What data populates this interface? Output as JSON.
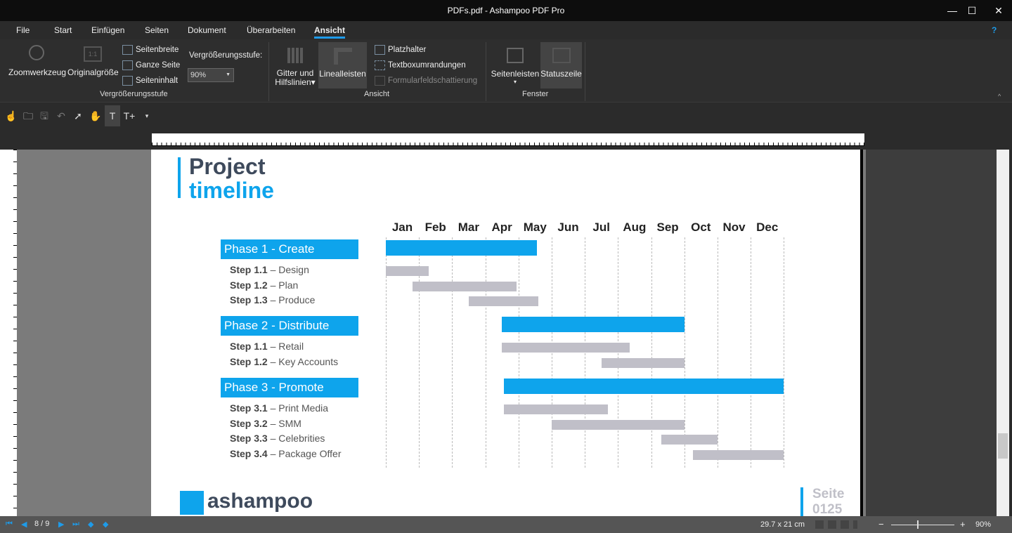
{
  "window": {
    "title": "PDFs.pdf - Ashampoo PDF Pro",
    "minimize": "—",
    "maximize": "☐",
    "close": "✕"
  },
  "menu": {
    "items": [
      "File",
      "Start",
      "Einfügen",
      "Seiten",
      "Dokument",
      "Überarbeiten",
      "Ansicht"
    ],
    "active": "Ansicht",
    "help": "?"
  },
  "ribbon": {
    "zoomtool": "Zoomwerkzeug",
    "original": "Originalgröße",
    "seitenbreite": "Seitenbreite",
    "ganze": "Ganze Seite",
    "inhalt": "Seiteninhalt",
    "zoom_label": "Vergrößerungsstufe:",
    "zoom_value": "90%",
    "group1": "Vergrößerungsstufe",
    "gitter1": "Gitter und",
    "gitter2": "Hilfslinien",
    "lineal": "Linealleisten",
    "platz": "Platzhalter",
    "textbox": "Textboxumrandungen",
    "formular": "Formularfeldschattierung",
    "group2": "Ansicht",
    "seitenleisten": "Seitenleisten",
    "statuszeile": "Statuszeile",
    "group3": "Fenster"
  },
  "document": {
    "title_line1": "Project",
    "title_line2": "timeline",
    "phases": [
      {
        "label": "Phase 1 - Create",
        "steps": [
          {
            "id": "Step 1.1",
            "name": "– Design"
          },
          {
            "id": "Step 1.2",
            "name": "– Plan"
          },
          {
            "id": "Step 1.3",
            "name": "– Produce"
          }
        ]
      },
      {
        "label": "Phase 2 - Distribute",
        "steps": [
          {
            "id": "Step 1.1",
            "name": "– Retail"
          },
          {
            "id": "Step 1.2",
            "name": "– Key Accounts"
          }
        ]
      },
      {
        "label": "Phase 3 - Promote",
        "steps": [
          {
            "id": "Step 3.1",
            "name": "– Print Media"
          },
          {
            "id": "Step 3.2",
            "name": "– SMM"
          },
          {
            "id": "Step 3.3",
            "name": "– Celebrities"
          },
          {
            "id": "Step 3.4",
            "name": "– Package Offer"
          }
        ]
      }
    ],
    "logo_text": "ashampoo",
    "page_label": "Seite",
    "page_number": "0125"
  },
  "chart_data": {
    "type": "gantt",
    "categories": [
      "Jan",
      "Feb",
      "Mar",
      "Apr",
      "May",
      "Jun",
      "Jul",
      "Aug",
      "Sep",
      "Oct",
      "Nov",
      "Dec"
    ],
    "unit": "months from start of Jan",
    "colors": {
      "phase": "#0ea4ec",
      "step": "#c0bfc8"
    },
    "tasks": [
      {
        "kind": "phase",
        "start": 0,
        "end": 4.55
      },
      {
        "kind": "step",
        "start": 0,
        "end": 1.3
      },
      {
        "kind": "step",
        "start": 0.8,
        "end": 3.95
      },
      {
        "kind": "step",
        "start": 2.5,
        "end": 4.6
      },
      {
        "kind": "phase",
        "start": 3.5,
        "end": 9
      },
      {
        "kind": "step",
        "start": 3.5,
        "end": 7.35
      },
      {
        "kind": "step",
        "start": 6.5,
        "end": 9
      },
      {
        "kind": "phase",
        "start": 3.55,
        "end": 12
      },
      {
        "kind": "step",
        "start": 3.55,
        "end": 6.7
      },
      {
        "kind": "step",
        "start": 5,
        "end": 9
      },
      {
        "kind": "step",
        "start": 8.3,
        "end": 10
      },
      {
        "kind": "step",
        "start": 9.25,
        "end": 12
      }
    ]
  },
  "status": {
    "page": "8 / 9",
    "size": "29.7 x 21 cm",
    "zoom": "90%",
    "zoom_fraction": 0.5,
    "minus": "−",
    "plus": "+"
  }
}
